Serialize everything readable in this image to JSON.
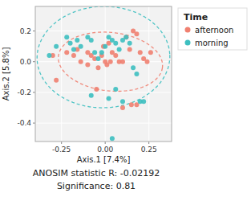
{
  "chart_data": {
    "type": "scatter",
    "x_label": "Axis.1  [7.4%]",
    "y_label": "Axis.2  [5.8%]",
    "annotations": [
      "ANOSIM statistic R: -0.02192",
      "Significance: 0.81"
    ],
    "legend_title": "Time",
    "legend": "right",
    "grid": true,
    "xlim": [
      -0.4,
      0.38
    ],
    "ylim": [
      -0.52,
      0.36
    ],
    "xticks": [
      -0.25,
      {
        "value": 0,
        "label": "0.00"
      },
      0.25
    ],
    "yticks": [
      -0.4,
      -0.2,
      {
        "value": 0,
        "label": "0.0"
      },
      0.2
    ],
    "series": [
      {
        "name": "afternoon",
        "color": "#F08070",
        "x": [
          -0.3,
          -0.28,
          -0.22,
          -0.18,
          -0.16,
          -0.14,
          -0.1,
          -0.1,
          -0.08,
          -0.06,
          -0.04,
          -0.02,
          -0.01,
          0.0,
          0.01,
          0.03,
          0.04,
          0.06,
          0.08,
          0.1,
          0.12,
          0.14,
          0.16,
          0.18,
          0.2,
          0.22,
          0.24,
          0.26,
          0.1,
          0.15,
          0.18,
          -0.05,
          0.02
        ],
        "values": [
          0.04,
          -0.12,
          0.06,
          0.04,
          0.08,
          0.0,
          0.06,
          -0.02,
          0.04,
          0.02,
          -0.04,
          0.04,
          0.1,
          0.0,
          -0.02,
          0.0,
          0.06,
          0.04,
          0.0,
          0.0,
          0.16,
          0.08,
          0.2,
          0.18,
          0.06,
          0.02,
          0.0,
          0.06,
          -0.3,
          -0.28,
          -0.28,
          -0.18,
          0.12
        ],
        "ellipse": {
          "cx": 0.03,
          "cy": 0.0,
          "width": 0.6,
          "height": 0.38,
          "angle": -8
        }
      },
      {
        "name": "morning",
        "color": "#3DBFC0",
        "x": [
          -0.32,
          -0.28,
          -0.22,
          -0.2,
          -0.18,
          -0.16,
          -0.14,
          -0.1,
          -0.08,
          -0.06,
          -0.04,
          -0.02,
          0.0,
          0.02,
          0.04,
          0.06,
          0.08,
          0.1,
          0.12,
          0.14,
          0.16,
          0.18,
          0.2,
          0.22,
          0.1,
          0.02,
          -0.08,
          0.06,
          0.04
        ],
        "values": [
          0.04,
          0.1,
          0.16,
          0.12,
          0.08,
          0.14,
          0.1,
          0.16,
          0.14,
          0.06,
          0.02,
          0.06,
          0.1,
          0.16,
          0.14,
          0.12,
          0.08,
          0.14,
          0.16,
          0.12,
          -0.04,
          -0.08,
          -0.26,
          -0.26,
          -0.26,
          -0.24,
          -0.22,
          -0.18,
          -0.5
        ],
        "ellipse": {
          "cx": -0.01,
          "cy": 0.03,
          "width": 0.76,
          "height": 0.66,
          "angle": 3
        }
      }
    ]
  }
}
